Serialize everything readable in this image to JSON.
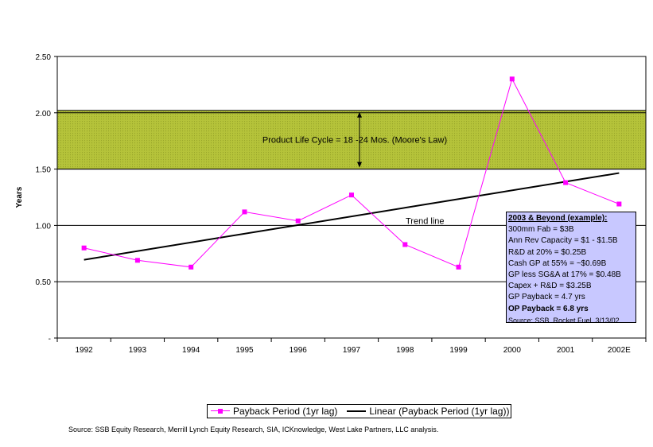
{
  "chart_data": {
    "type": "line",
    "title": "",
    "xlabel": "",
    "ylabel": "Years",
    "categories": [
      "1992",
      "1993",
      "1994",
      "1995",
      "1996",
      "1997",
      "1998",
      "1999",
      "2000",
      "2001",
      "2002E"
    ],
    "ylim": [
      0,
      2.5
    ],
    "yticks": [
      "-",
      "0.50",
      "1.00",
      "1.50",
      "2.00",
      "2.50"
    ],
    "grid": true,
    "series": [
      {
        "name": "Payback Period (1yr lag)",
        "color": "#ff00ff",
        "marker": "square",
        "values": [
          0.8,
          0.69,
          0.63,
          1.12,
          1.04,
          1.27,
          0.83,
          0.63,
          2.3,
          1.38,
          1.19
        ]
      },
      {
        "name": "Linear (Payback Period (1yr lag))",
        "color": "#000000",
        "marker": "none",
        "values": [
          0.695,
          0.772,
          0.849,
          0.926,
          1.003,
          1.08,
          1.157,
          1.234,
          1.311,
          1.388,
          1.465
        ]
      }
    ],
    "band": {
      "from": 1.5,
      "to": 2.0,
      "color": "#b5c33a",
      "label": "Product Life Cycle = 18 -24 Mos. (Moore's Law)"
    },
    "annotations": {
      "trend_label": "Trend line"
    },
    "legend_position": "bottom"
  },
  "infobox": {
    "title": "2003 & Beyond (example):",
    "lines": [
      "300mm Fab = $3B",
      "Ann Rev Capacity = $1 - $1.5B",
      "R&D at 20% = $0.25B",
      "Cash GP at 55% = ~$0.69B",
      "GP less SG&A at 17% = $0.48B",
      "Capex + R&D = $3.25B",
      "GP Payback = 4.7 yrs"
    ],
    "bold_line": "OP Payback = 6.8 yrs",
    "source": "Source: SSB, Rocket Fuel, 3/13/02"
  },
  "footer": {
    "source": "Source: SSB Equity Research, Merrill Lynch Equity Research, SIA, ICKnowledge, West Lake Partners, LLC analysis."
  }
}
